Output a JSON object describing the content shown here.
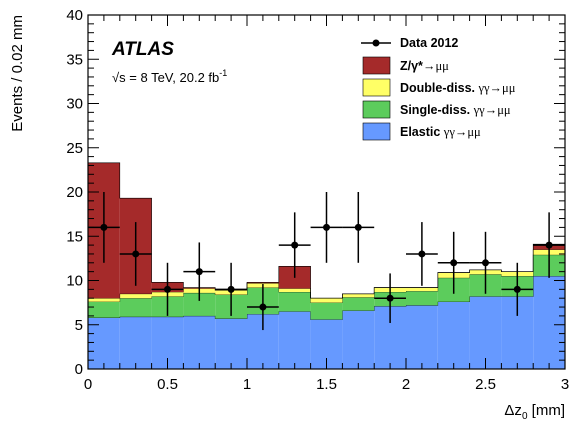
{
  "chart_data": {
    "type": "stacked-histogram",
    "experiment": "ATLAS",
    "energy_label_parts": [
      "√s",
      " = 8 TeV, 20.2 fb",
      "-1"
    ],
    "xlabel_parts": [
      "Δz",
      "0",
      " [mm]"
    ],
    "ylabel": "Events / 0.02 mm",
    "xlim": [
      0,
      3
    ],
    "ylim": [
      0,
      40
    ],
    "x_ticks": [
      0,
      0.5,
      1,
      1.5,
      2,
      2.5,
      3
    ],
    "x_tick_labels": [
      "0",
      "0.5",
      "1",
      "1.5",
      "2",
      "2.5",
      "3"
    ],
    "y_ticks": [
      0,
      5,
      10,
      15,
      20,
      25,
      30,
      35,
      40
    ],
    "y_tick_labels": [
      "0",
      "5",
      "10",
      "15",
      "20",
      "25",
      "30",
      "35",
      "40"
    ],
    "bin_edges": [
      0,
      0.2,
      0.4,
      0.6,
      0.8,
      1.0,
      1.2,
      1.4,
      1.6,
      1.8,
      2.0,
      2.2,
      2.4,
      2.6,
      2.8,
      3.0
    ],
    "series": [
      {
        "name": "Elastic",
        "process": "γγ→μμ",
        "color": "#6699ff",
        "values": [
          5.8,
          5.9,
          5.9,
          6.0,
          5.7,
          6.2,
          6.5,
          5.6,
          6.6,
          7.1,
          7.2,
          7.6,
          8.2,
          8.2,
          10.5
        ]
      },
      {
        "name": "Single-diss.",
        "process": "γγ→μμ",
        "color": "#5ccc5c",
        "values": [
          1.8,
          2.1,
          2.3,
          2.6,
          2.7,
          3.0,
          2.2,
          1.9,
          1.5,
          1.6,
          1.6,
          2.7,
          2.5,
          2.3,
          2.4
        ]
      },
      {
        "name": "Double-diss.",
        "process": "γγ→μμ",
        "color": "#ffff66",
        "values": [
          0.4,
          0.5,
          0.5,
          0.5,
          0.5,
          0.5,
          0.4,
          0.5,
          0.4,
          0.5,
          0.4,
          0.6,
          0.5,
          0.5,
          0.6
        ]
      },
      {
        "name": "Z/γ*",
        "process": "→μμ",
        "color": "#a52a2a",
        "values": [
          15.3,
          10.8,
          1.1,
          0.1,
          0.0,
          0.1,
          2.5,
          0.0,
          0.0,
          0.0,
          0.0,
          0.0,
          0.0,
          0.0,
          0.6
        ]
      }
    ],
    "data": {
      "name": "Data 2012",
      "x": [
        0.1,
        0.3,
        0.5,
        0.7,
        0.9,
        1.1,
        1.3,
        1.5,
        1.7,
        1.9,
        2.1,
        2.3,
        2.5,
        2.7,
        2.9
      ],
      "y": [
        16,
        13,
        9,
        11,
        9,
        7,
        14,
        16,
        16,
        8,
        13,
        12,
        12,
        9,
        14
      ],
      "yerr": [
        4,
        3.6,
        3,
        3.3,
        3,
        2.6,
        3.7,
        4,
        4,
        2.8,
        3.6,
        3.5,
        3.5,
        3,
        3.7
      ]
    },
    "legend_order": [
      "Data 2012",
      "Z/γ*",
      "Double-diss.",
      "Single-diss.",
      "Elastic"
    ],
    "legend_position": "top-right"
  }
}
